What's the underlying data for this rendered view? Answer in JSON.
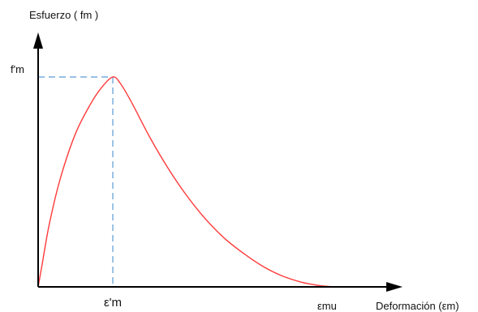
{
  "chart_data": {
    "type": "line",
    "ylabel": "Esfuerzo ( fm )",
    "xlabel": "Deformación (εm)",
    "y_ticks": [
      {
        "value": 1,
        "label": "f'm"
      }
    ],
    "x_ticks": [
      {
        "value": 1,
        "label": "ε'm"
      },
      {
        "value": 4,
        "label": "εmu"
      }
    ],
    "xlim": [
      0,
      4.9
    ],
    "ylim": [
      0,
      1.27
    ],
    "grid": false,
    "series": [
      {
        "color": "#ff3b3b",
        "x": [
          0,
          0.05,
          0.15,
          0.3,
          0.5,
          0.7,
          0.85,
          1.0,
          1.1,
          1.25,
          1.5,
          1.75,
          2.0,
          2.25,
          2.5,
          2.75,
          3.0,
          3.25,
          3.5,
          3.7,
          3.85,
          4.0
        ],
        "y": [
          0,
          0.1,
          0.3,
          0.52,
          0.73,
          0.87,
          0.95,
          1.0,
          0.97,
          0.88,
          0.71,
          0.56,
          0.43,
          0.32,
          0.23,
          0.16,
          0.1,
          0.055,
          0.025,
          0.01,
          0.003,
          0.0
        ]
      }
    ],
    "reference_lines": [
      {
        "from": [
          0,
          1
        ],
        "to": [
          1,
          1
        ],
        "color": "#5b9bd5",
        "dashed": true
      },
      {
        "from": [
          1,
          1
        ],
        "to": [
          1,
          0
        ],
        "color": "#5b9bd5",
        "dashed": true
      }
    ]
  }
}
